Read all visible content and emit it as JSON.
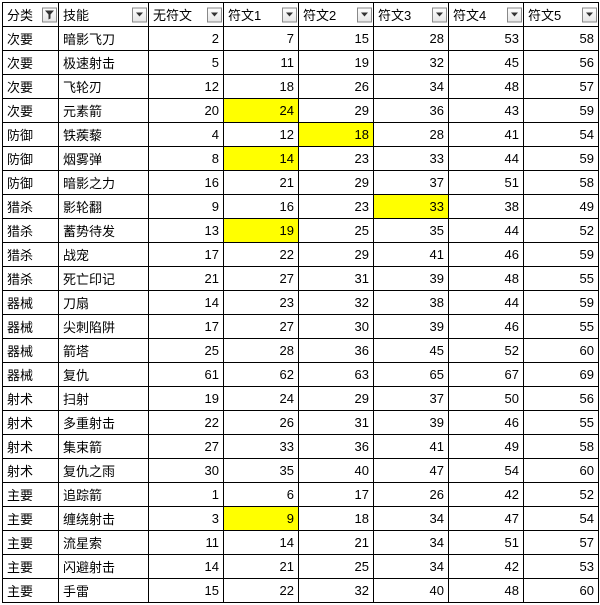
{
  "colors": {
    "highlight": "#ffff00",
    "border": "#000000",
    "background": "#ffffff",
    "btn_border": "#888888"
  },
  "columns": [
    {
      "key": "cat",
      "label": "分类",
      "type": "text",
      "filtered": true
    },
    {
      "key": "skill",
      "label": "技能",
      "type": "text",
      "filtered": false
    },
    {
      "key": "r0",
      "label": "无符文",
      "type": "num",
      "filtered": false
    },
    {
      "key": "r1",
      "label": "符文1",
      "type": "num",
      "filtered": false
    },
    {
      "key": "r2",
      "label": "符文2",
      "type": "num",
      "filtered": false
    },
    {
      "key": "r3",
      "label": "符文3",
      "type": "num",
      "filtered": false
    },
    {
      "key": "r4",
      "label": "符文4",
      "type": "num",
      "filtered": false
    },
    {
      "key": "r5",
      "label": "符文5",
      "type": "num",
      "filtered": false
    }
  ],
  "rows": [
    {
      "cat": "次要",
      "skill": "暗影飞刀",
      "r0": 2,
      "r1": 7,
      "r2": 15,
      "r3": 28,
      "r4": 53,
      "r5": 58
    },
    {
      "cat": "次要",
      "skill": "极速射击",
      "r0": 5,
      "r1": 11,
      "r2": 19,
      "r3": 32,
      "r4": 45,
      "r5": 56
    },
    {
      "cat": "次要",
      "skill": "飞轮刃",
      "r0": 12,
      "r1": 18,
      "r2": 26,
      "r3": 34,
      "r4": 48,
      "r5": 57
    },
    {
      "cat": "次要",
      "skill": "元素箭",
      "r0": 20,
      "r1": 24,
      "r2": 29,
      "r3": 36,
      "r4": 43,
      "r5": 59,
      "hl": [
        "r1"
      ]
    },
    {
      "cat": "防御",
      "skill": "铁蒺藜",
      "r0": 4,
      "r1": 12,
      "r2": 18,
      "r3": 28,
      "r4": 41,
      "r5": 54,
      "hl": [
        "r2"
      ]
    },
    {
      "cat": "防御",
      "skill": "烟雾弹",
      "r0": 8,
      "r1": 14,
      "r2": 23,
      "r3": 33,
      "r4": 44,
      "r5": 59,
      "hl": [
        "r1"
      ]
    },
    {
      "cat": "防御",
      "skill": "暗影之力",
      "r0": 16,
      "r1": 21,
      "r2": 29,
      "r3": 37,
      "r4": 51,
      "r5": 58
    },
    {
      "cat": "猎杀",
      "skill": "影轮翻",
      "r0": 9,
      "r1": 16,
      "r2": 23,
      "r3": 33,
      "r4": 38,
      "r5": 49,
      "hl": [
        "r3"
      ]
    },
    {
      "cat": "猎杀",
      "skill": "蓄势待发",
      "r0": 13,
      "r1": 19,
      "r2": 25,
      "r3": 35,
      "r4": 44,
      "r5": 52,
      "hl": [
        "r1"
      ]
    },
    {
      "cat": "猎杀",
      "skill": "战宠",
      "r0": 17,
      "r1": 22,
      "r2": 29,
      "r3": 41,
      "r4": 46,
      "r5": 59
    },
    {
      "cat": "猎杀",
      "skill": "死亡印记",
      "r0": 21,
      "r1": 27,
      "r2": 31,
      "r3": 39,
      "r4": 48,
      "r5": 55
    },
    {
      "cat": "器械",
      "skill": "刀扇",
      "r0": 14,
      "r1": 23,
      "r2": 32,
      "r3": 38,
      "r4": 44,
      "r5": 59
    },
    {
      "cat": "器械",
      "skill": "尖刺陷阱",
      "r0": 17,
      "r1": 27,
      "r2": 30,
      "r3": 39,
      "r4": 46,
      "r5": 55
    },
    {
      "cat": "器械",
      "skill": "箭塔",
      "r0": 25,
      "r1": 28,
      "r2": 36,
      "r3": 45,
      "r4": 52,
      "r5": 60
    },
    {
      "cat": "器械",
      "skill": "复仇",
      "r0": 61,
      "r1": 62,
      "r2": 63,
      "r3": 65,
      "r4": 67,
      "r5": 69
    },
    {
      "cat": "射术",
      "skill": "扫射",
      "r0": 19,
      "r1": 24,
      "r2": 29,
      "r3": 37,
      "r4": 50,
      "r5": 56
    },
    {
      "cat": "射术",
      "skill": "多重射击",
      "r0": 22,
      "r1": 26,
      "r2": 31,
      "r3": 39,
      "r4": 46,
      "r5": 55
    },
    {
      "cat": "射术",
      "skill": "集束箭",
      "r0": 27,
      "r1": 33,
      "r2": 36,
      "r3": 41,
      "r4": 49,
      "r5": 58
    },
    {
      "cat": "射术",
      "skill": "复仇之雨",
      "r0": 30,
      "r1": 35,
      "r2": 40,
      "r3": 47,
      "r4": 54,
      "r5": 60
    },
    {
      "cat": "主要",
      "skill": "追踪箭",
      "r0": 1,
      "r1": 6,
      "r2": 17,
      "r3": 26,
      "r4": 42,
      "r5": 52
    },
    {
      "cat": "主要",
      "skill": "缠绕射击",
      "r0": 3,
      "r1": 9,
      "r2": 18,
      "r3": 34,
      "r4": 47,
      "r5": 54,
      "hl": [
        "r1"
      ]
    },
    {
      "cat": "主要",
      "skill": "流星索",
      "r0": 11,
      "r1": 14,
      "r2": 21,
      "r3": 34,
      "r4": 51,
      "r5": 57
    },
    {
      "cat": "主要",
      "skill": "闪避射击",
      "r0": 14,
      "r1": 21,
      "r2": 25,
      "r3": 34,
      "r4": 42,
      "r5": 53
    },
    {
      "cat": "主要",
      "skill": "手雷",
      "r0": 15,
      "r1": 22,
      "r2": 32,
      "r3": 40,
      "r4": 48,
      "r5": 60
    }
  ]
}
